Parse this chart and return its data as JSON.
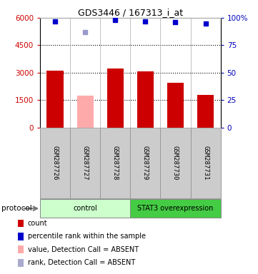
{
  "title": "GDS3446 / 167313_i_at",
  "samples": [
    "GSM287726",
    "GSM287727",
    "GSM287728",
    "GSM287729",
    "GSM287730",
    "GSM287731"
  ],
  "bar_values": [
    3100,
    1750,
    3230,
    3050,
    2450,
    1780
  ],
  "bar_colors": [
    "#cc0000",
    "#ffaaaa",
    "#cc0000",
    "#cc0000",
    "#cc0000",
    "#cc0000"
  ],
  "dot_values_pct": [
    97,
    87,
    98,
    97,
    96,
    95
  ],
  "dot_colors": [
    "#0000cc",
    "#9999cc",
    "#0000cc",
    "#0000cc",
    "#0000cc",
    "#0000cc"
  ],
  "ylim_left": [
    0,
    6000
  ],
  "ylim_right": [
    0,
    100
  ],
  "yticks_left": [
    0,
    1500,
    3000,
    4500,
    6000
  ],
  "ytick_labels_left": [
    "0",
    "1500",
    "3000",
    "4500",
    "6000"
  ],
  "yticks_right": [
    0,
    25,
    50,
    75,
    100
  ],
  "ytick_labels_right": [
    "0",
    "25",
    "50",
    "75",
    "100%"
  ],
  "grid_values": [
    1500,
    3000,
    4500
  ],
  "protocol_groups": [
    {
      "label": "control",
      "start": 0,
      "end": 3,
      "color": "#ccffcc"
    },
    {
      "label": "STAT3 overexpression",
      "start": 3,
      "end": 6,
      "color": "#44cc44"
    }
  ],
  "protocol_label": "protocol",
  "legend_items": [
    {
      "color": "#cc0000",
      "label": "count"
    },
    {
      "color": "#0000cc",
      "label": "percentile rank within the sample"
    },
    {
      "color": "#ffaaaa",
      "label": "value, Detection Call = ABSENT"
    },
    {
      "color": "#aaaacc",
      "label": "rank, Detection Call = ABSENT"
    }
  ],
  "bar_width": 0.55,
  "label_color_left": "#cc0000",
  "label_color_right": "#0000bb"
}
